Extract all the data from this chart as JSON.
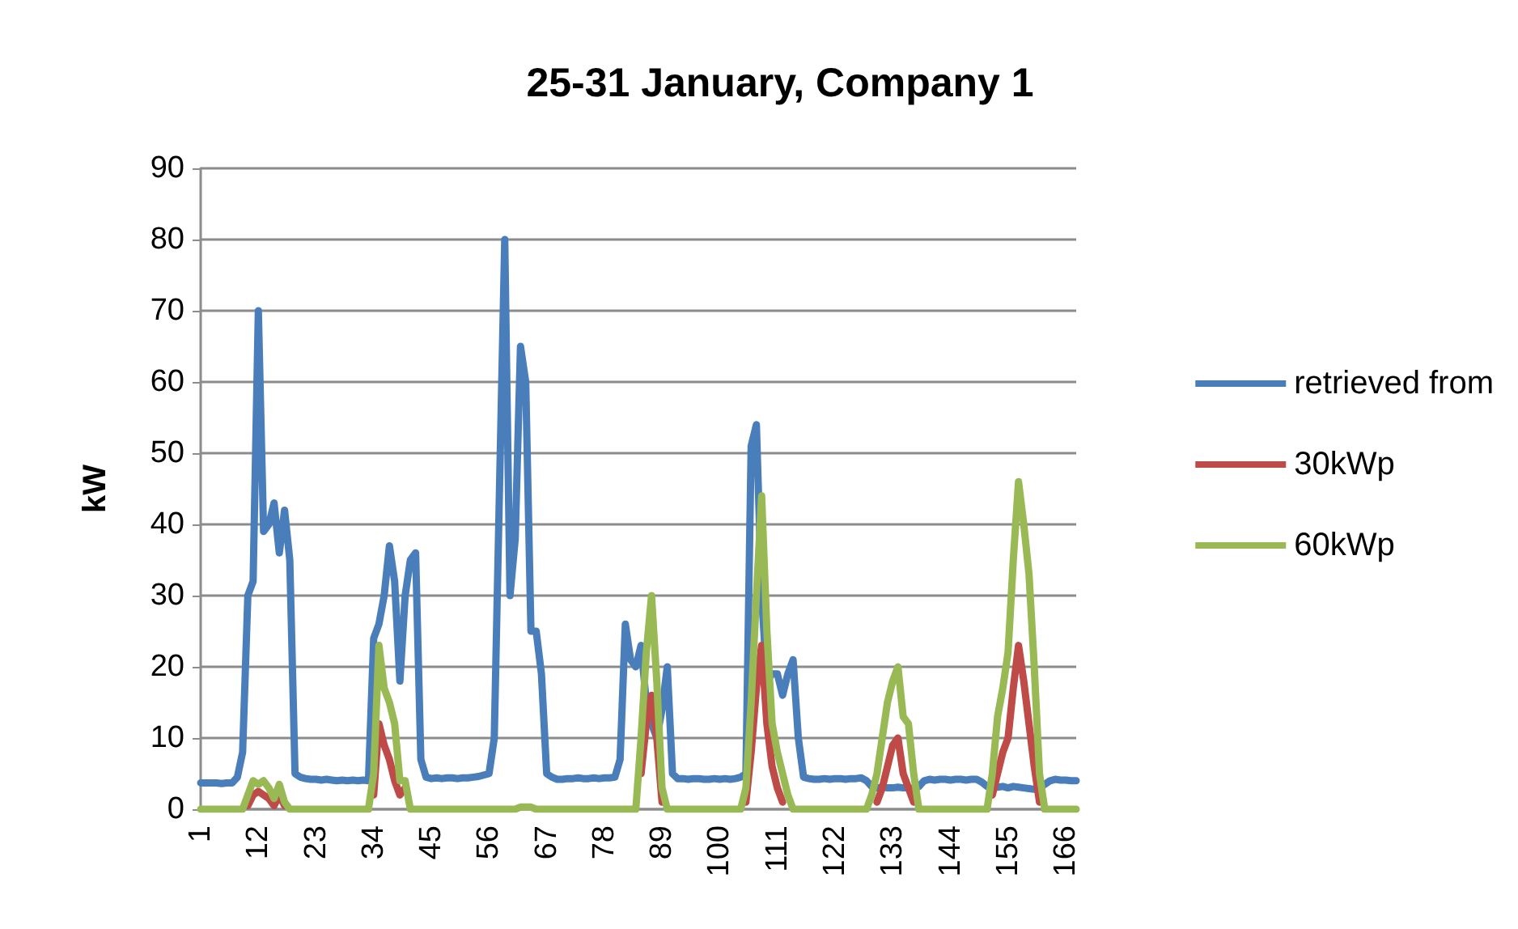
{
  "chart_data": {
    "type": "line",
    "title": "25-31 January, Company 1",
    "ylabel": "kW",
    "categories": [
      "1",
      null,
      null,
      null,
      null,
      null,
      null,
      null,
      null,
      null,
      null,
      "12",
      null,
      null,
      null,
      null,
      null,
      null,
      null,
      null,
      null,
      null,
      "23",
      null,
      null,
      null,
      null,
      null,
      null,
      null,
      null,
      null,
      null,
      "34",
      null,
      null,
      null,
      null,
      null,
      null,
      null,
      null,
      null,
      null,
      "45",
      null,
      null,
      null,
      null,
      null,
      null,
      null,
      null,
      null,
      null,
      "56",
      null,
      null,
      null,
      null,
      null,
      null,
      null,
      null,
      null,
      null,
      "67",
      null,
      null,
      null,
      null,
      null,
      null,
      null,
      null,
      null,
      null,
      "78",
      null,
      null,
      null,
      null,
      null,
      null,
      null,
      null,
      null,
      null,
      "89",
      null,
      null,
      null,
      null,
      null,
      null,
      null,
      null,
      null,
      null,
      "100",
      null,
      null,
      null,
      null,
      null,
      null,
      null,
      null,
      null,
      null,
      "111",
      null,
      null,
      null,
      null,
      null,
      null,
      null,
      null,
      null,
      null,
      "122",
      null,
      null,
      null,
      null,
      null,
      null,
      null,
      null,
      null,
      null,
      "133",
      null,
      null,
      null,
      null,
      null,
      null,
      null,
      null,
      null,
      null,
      "144",
      null,
      null,
      null,
      null,
      null,
      null,
      null,
      null,
      null,
      null,
      "155",
      null,
      null,
      null,
      null,
      null,
      null,
      null,
      null,
      null,
      null,
      "166",
      null,
      null
    ],
    "series": [
      {
        "name": "retrieved from",
        "color": "#4a7ebb",
        "values": [
          3.7,
          3.7,
          3.7,
          3.7,
          3.6,
          3.7,
          3.7,
          4.5,
          8,
          30,
          32,
          70,
          39,
          40,
          43,
          36,
          42,
          35,
          5,
          4.5,
          4.3,
          4.2,
          4.2,
          4.1,
          4.2,
          4.1,
          4.0,
          4.1,
          4.0,
          4.1,
          4.0,
          4.1,
          4.0,
          24,
          26,
          30,
          37,
          32,
          18,
          30,
          35,
          36,
          7,
          4.5,
          4.3,
          4.4,
          4.3,
          4.4,
          4.4,
          4.3,
          4.4,
          4.4,
          4.5,
          4.6,
          4.8,
          5,
          10,
          45,
          80,
          30,
          38,
          65,
          60,
          25,
          25,
          19,
          5,
          4.5,
          4.2,
          4.2,
          4.3,
          4.3,
          4.4,
          4.3,
          4.3,
          4.4,
          4.3,
          4.4,
          4.4,
          4.5,
          7,
          26,
          21,
          20,
          23,
          15,
          12,
          10,
          14,
          20,
          5,
          4.3,
          4.3,
          4.2,
          4.3,
          4.3,
          4.2,
          4.2,
          4.3,
          4.2,
          4.3,
          4.2,
          4.3,
          4.5,
          5,
          51,
          54,
          30,
          18,
          19,
          19,
          16,
          19,
          21,
          10,
          4.5,
          4.3,
          4.2,
          4.2,
          4.3,
          4.2,
          4.3,
          4.3,
          4.2,
          4.3,
          4.3,
          4.4,
          4.0,
          3.2,
          3.0,
          3.1,
          3.0,
          3.0,
          3.1,
          3.0,
          3.0,
          2.9,
          3.2,
          4,
          4.2,
          4.1,
          4.2,
          4.2,
          4.1,
          4.2,
          4.2,
          4.1,
          4.2,
          4.2,
          3.8,
          3.2,
          3.1,
          3.1,
          3.2,
          3.0,
          3.2,
          3.1,
          3.0,
          2.9,
          2.8,
          3.0,
          3.5,
          4.0,
          4.2,
          4.1,
          4.1,
          4.0,
          4.0
        ]
      },
      {
        "name": "30kWp",
        "color": "#be4b48",
        "values": [
          null,
          null,
          null,
          null,
          null,
          null,
          null,
          null,
          null,
          0.5,
          2,
          2.5,
          2,
          1.5,
          0.5,
          2,
          0.5,
          null,
          null,
          null,
          null,
          null,
          null,
          null,
          null,
          null,
          null,
          null,
          null,
          null,
          null,
          null,
          null,
          2,
          12,
          9,
          7,
          4,
          2,
          3,
          null,
          null,
          null,
          null,
          null,
          null,
          null,
          null,
          null,
          null,
          null,
          null,
          null,
          null,
          null,
          null,
          null,
          null,
          null,
          null,
          null,
          null,
          null,
          null,
          null,
          null,
          null,
          null,
          null,
          null,
          null,
          null,
          null,
          null,
          null,
          null,
          null,
          null,
          null,
          null,
          null,
          null,
          null,
          null,
          5,
          12,
          16,
          10,
          1,
          null,
          null,
          null,
          null,
          null,
          null,
          null,
          null,
          null,
          null,
          null,
          null,
          null,
          null,
          null,
          1,
          8,
          17,
          23,
          12,
          6,
          3,
          1,
          null,
          null,
          null,
          null,
          null,
          null,
          null,
          null,
          null,
          null,
          null,
          null,
          null,
          null,
          null,
          null,
          null,
          1,
          3,
          6,
          9,
          10,
          5,
          3,
          1,
          null,
          null,
          null,
          null,
          null,
          null,
          null,
          null,
          null,
          null,
          null,
          null,
          null,
          null,
          2,
          5,
          8,
          10,
          17,
          23,
          18,
          12,
          6,
          1,
          null,
          null,
          null,
          null,
          null,
          null,
          null
        ]
      },
      {
        "name": "60kWp",
        "color": "#98b954",
        "values": [
          0,
          0,
          0,
          0,
          0,
          0,
          0,
          0,
          0,
          2,
          4,
          3.5,
          4,
          3,
          1.5,
          3.5,
          1,
          0,
          0,
          0,
          0,
          0,
          0,
          0,
          0,
          0,
          0,
          0,
          0,
          0,
          0,
          0,
          0,
          5,
          23,
          17,
          15,
          12,
          4,
          4,
          0,
          0,
          0,
          0,
          0,
          0,
          0,
          0,
          0,
          0,
          0,
          0,
          0,
          0,
          0,
          0,
          0,
          0,
          0,
          0,
          0,
          0.3,
          0.3,
          0.3,
          0,
          0,
          0,
          0,
          0,
          0,
          0,
          0,
          0,
          0,
          0,
          0,
          0,
          0,
          0,
          0,
          0,
          0,
          0,
          0,
          10,
          22,
          30,
          18,
          3,
          0,
          0,
          0,
          0,
          0,
          0,
          0,
          0,
          0,
          0,
          0,
          0,
          0,
          0,
          0,
          3,
          15,
          30,
          44,
          25,
          12,
          8,
          5,
          2,
          0,
          0,
          0,
          0,
          0,
          0,
          0,
          0,
          0,
          0,
          0,
          0,
          0,
          0,
          0,
          2,
          5,
          10,
          15,
          18,
          20,
          13,
          12,
          5,
          0,
          0,
          0,
          0,
          0,
          0,
          0,
          0,
          0,
          0,
          0,
          0,
          0,
          0,
          5,
          13,
          17,
          22,
          35,
          46,
          40,
          33,
          20,
          5,
          0,
          0,
          0,
          0,
          0,
          0,
          0
        ]
      }
    ],
    "ylim": [
      0,
      90
    ],
    "yticks": [
      0,
      10,
      20,
      30,
      40,
      50,
      60,
      70,
      80,
      90
    ],
    "grid": "y",
    "legend": "right",
    "marker": "none",
    "line_style": "solid"
  }
}
